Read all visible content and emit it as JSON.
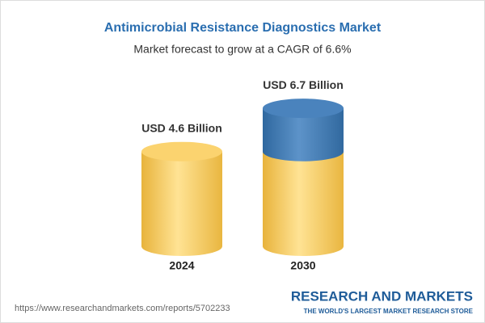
{
  "chart_data": {
    "type": "cylinder",
    "title": "Antimicrobial Resistance Diagnostics Market",
    "subtitle": "Market forecast to grow at a CAGR of 6.6%",
    "categories": [
      "2024",
      "2030"
    ],
    "values": [
      4.6,
      6.7
    ],
    "value_labels": [
      "USD 4.6 Billion",
      "USD 6.7 Billion"
    ],
    "colors": {
      "base": "#f2c14e",
      "growth": "#3b76b0"
    },
    "source": "https://www.researchandmarkets.com/reports/5702233"
  },
  "footer": {
    "brand": "RESEARCH AND MARKETS",
    "tagline": "THE WORLD'S LARGEST MARKET RESEARCH STORE"
  }
}
